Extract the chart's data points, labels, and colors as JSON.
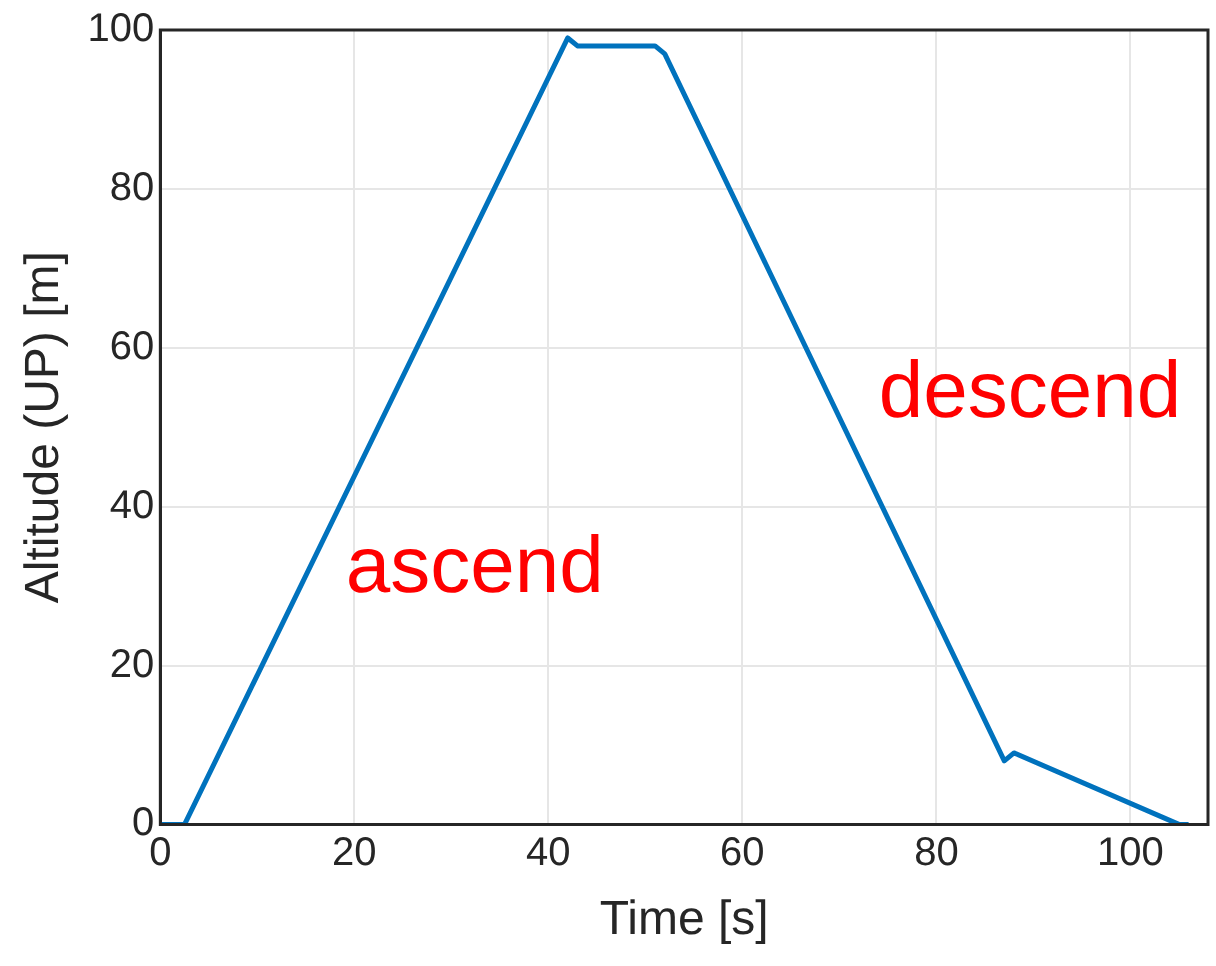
{
  "chart_data": {
    "type": "line",
    "xlabel": "Time [s]",
    "ylabel": "Altitude (UP) [m]",
    "x": [
      0,
      2.5,
      42,
      43,
      51,
      52,
      87,
      88,
      105,
      106
    ],
    "series": [
      {
        "color": "#0072bd",
        "values": [
          0,
          0,
          99,
          98,
          98,
          97,
          8,
          9,
          0,
          0
        ]
      }
    ],
    "xlim": [
      0,
      108
    ],
    "ylim": [
      0,
      100
    ],
    "xticks": [
      0,
      20,
      40,
      60,
      80,
      100
    ],
    "yticks": [
      0,
      20,
      40,
      60,
      80,
      100
    ],
    "grid": true,
    "legend": false,
    "marker": "none",
    "line_style": "solid",
    "annotations": [
      "ascend",
      "descend"
    ]
  }
}
